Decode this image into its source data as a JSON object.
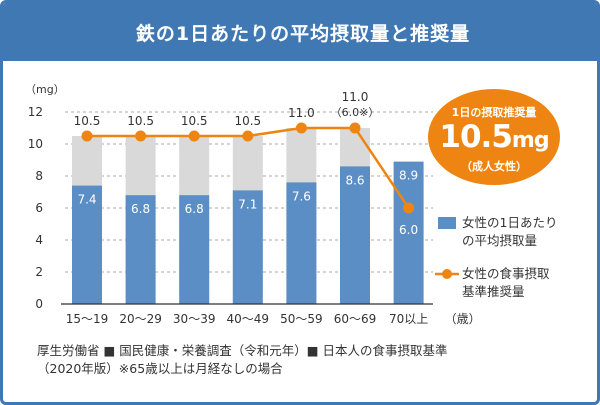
{
  "title": "鉄の1日あたりの平均摂取量と推奨量",
  "badge": {
    "label": "1日の摂取推奨量",
    "value": "10.5",
    "unit": "mg",
    "sub": "（成人女性）"
  },
  "legend": {
    "bar_line1": "女性の1日あたり",
    "bar_line2": "の平均摂取量",
    "line_line1": "女性の食事摂取",
    "line_line2": "基準推奨量"
  },
  "source": {
    "line1": "厚生労働省 ■ 国民健康・栄養調査（令和元年）■ 日本人の食事摂取基準",
    "line2": "（2020年版）※65歳以上は月経なしの場合"
  },
  "colors": {
    "header": "#3f78b3",
    "bar": "#5b8ec5",
    "bar_background": "#d9d9d9",
    "line": "#ee8512"
  },
  "chart_data": {
    "type": "bar",
    "ylabel": "（mg）",
    "xunit": "（歳）",
    "ylim": [
      0,
      12
    ],
    "yticks": [
      0,
      2,
      4,
      6,
      8,
      10,
      12
    ],
    "grid": true,
    "categories": [
      "15〜19",
      "20〜29",
      "30〜39",
      "40〜49",
      "50〜59",
      "60〜69",
      "70以上"
    ],
    "series": [
      {
        "name": "女性の1日あたりの平均摂取量",
        "kind": "bar",
        "values": [
          7.4,
          6.8,
          6.8,
          7.1,
          7.6,
          8.6,
          8.9
        ],
        "labels": [
          "7.4",
          "6.8",
          "6.8",
          "7.1",
          "7.6",
          "8.6",
          "8.9"
        ]
      },
      {
        "name": "女性の食事摂取基準推奨量",
        "kind": "line",
        "values": [
          10.5,
          10.5,
          10.5,
          10.5,
          11.0,
          11.0,
          6.0
        ],
        "labels": [
          "10.5",
          "10.5",
          "10.5",
          "10.5",
          "11.0",
          "11.0",
          "6.0"
        ],
        "sublabels": [
          "",
          "",
          "",
          "",
          "",
          "（6.0※）",
          ""
        ]
      }
    ]
  }
}
